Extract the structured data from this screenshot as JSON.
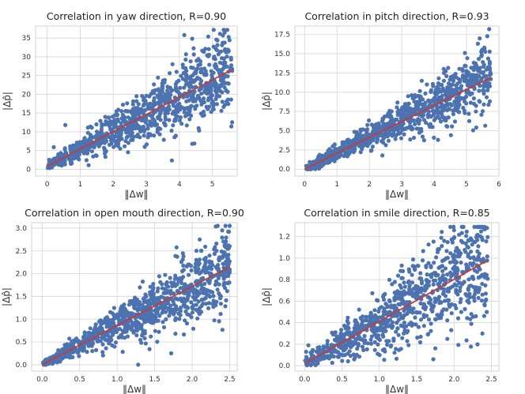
{
  "chart_data": [
    {
      "type": "scatter",
      "title": "Correlation in yaw direction, R=0.90",
      "xlabel": "‖Δw‖",
      "ylabel": "|Δp̂|",
      "xlim": [
        -0.35,
        5.75
      ],
      "ylim": [
        -1.8,
        38.2
      ],
      "xticks": [
        0,
        1,
        2,
        3,
        4,
        5
      ],
      "yticks": [
        0,
        5,
        10,
        15,
        20,
        25,
        30,
        35
      ],
      "xtick_labels": [
        "0",
        "1",
        "2",
        "3",
        "4",
        "5"
      ],
      "ytick_labels": [
        "0",
        "5",
        "10",
        "15",
        "20",
        "25",
        "30",
        "35"
      ],
      "fit_line": [
        [
          0.0,
          0.8
        ],
        [
          5.6,
          26.6
        ]
      ],
      "cloud": {
        "n": 950,
        "x_min": 0.0,
        "x_max": 5.6,
        "slope": 4.6,
        "intercept": 0.8,
        "spread_rel": 0.21,
        "y_min": 0,
        "y_max": 37.2,
        "seed": 11
      },
      "extra_points": [
        [
          0.55,
          11.8
        ],
        [
          5.45,
          37.2
        ],
        [
          4.15,
          35.8
        ],
        [
          2.95,
          6.0
        ],
        [
          0.2,
          5.9
        ]
      ]
    },
    {
      "type": "scatter",
      "title": "Correlation in pitch direction, R=0.93",
      "xlabel": "‖Δw‖",
      "ylabel": "|Δp̂|",
      "xlim": [
        -0.3,
        6.0
      ],
      "ylim": [
        -0.9,
        18.6
      ],
      "xticks": [
        0,
        1,
        2,
        3,
        4,
        5,
        6
      ],
      "yticks": [
        0.0,
        2.5,
        5.0,
        7.5,
        10.0,
        12.5,
        15.0,
        17.5
      ],
      "xtick_labels": [
        "0",
        "1",
        "2",
        "3",
        "4",
        "5",
        "6"
      ],
      "ytick_labels": [
        "0.0",
        "2.5",
        "5.0",
        "7.5",
        "10.0",
        "12.5",
        "15.0",
        "17.5"
      ],
      "fit_line": [
        [
          0.0,
          0.0
        ],
        [
          5.75,
          11.9
        ]
      ],
      "cloud": {
        "n": 950,
        "x_min": 0.0,
        "x_max": 5.75,
        "slope": 2.07,
        "intercept": 0.0,
        "spread_rel": 0.16,
        "y_min": 0,
        "y_max": 18.2,
        "seed": 23
      },
      "extra_points": [
        [
          5.7,
          18.2
        ],
        [
          5.35,
          16.3
        ],
        [
          5.55,
          15.8
        ],
        [
          4.95,
          15.1
        ]
      ]
    },
    {
      "type": "scatter",
      "title": "Correlation in open mouth direction, R=0.90",
      "xlabel": "‖Δw‖",
      "ylabel": "|Δp̂|",
      "xlim": [
        -0.14,
        2.6
      ],
      "ylim": [
        -0.14,
        3.12
      ],
      "xticks": [
        0.0,
        0.5,
        1.0,
        1.5,
        2.0,
        2.5
      ],
      "yticks": [
        0.0,
        0.5,
        1.0,
        1.5,
        2.0,
        2.5,
        3.0
      ],
      "xtick_labels": [
        "0.0",
        "0.5",
        "1.0",
        "1.5",
        "2.0",
        "2.5"
      ],
      "ytick_labels": [
        "0.0",
        "0.5",
        "1.0",
        "1.5",
        "2.0",
        "2.5",
        "3.0"
      ],
      "fit_line": [
        [
          0.0,
          0.0
        ],
        [
          2.5,
          2.15
        ]
      ],
      "cloud": {
        "n": 950,
        "x_min": 0.0,
        "x_max": 2.5,
        "slope": 0.86,
        "intercept": 0.0,
        "spread_rel": 0.2,
        "y_min": 0,
        "y_max": 3.05,
        "seed": 37
      },
      "extra_points": [
        [
          2.5,
          3.05
        ],
        [
          2.4,
          2.95
        ],
        [
          1.28,
          0.0
        ],
        [
          2.1,
          2.75
        ],
        [
          1.72,
          0.25
        ]
      ]
    },
    {
      "type": "scatter",
      "title": "Correlation in smile direction, R=0.85",
      "xlabel": "‖Δw‖",
      "ylabel": "|Δp̂|",
      "xlim": [
        -0.13,
        2.6
      ],
      "ylim": [
        -0.05,
        1.33
      ],
      "xticks": [
        0.0,
        0.5,
        1.0,
        1.5,
        2.0,
        2.5
      ],
      "yticks": [
        0.0,
        0.2,
        0.4,
        0.6,
        0.8,
        1.0,
        1.2
      ],
      "xtick_labels": [
        "0.0",
        "0.5",
        "1.0",
        "1.5",
        "2.0",
        "2.5"
      ],
      "ytick_labels": [
        "0.0",
        "0.2",
        "0.4",
        "0.6",
        "0.8",
        "1.0",
        "1.2"
      ],
      "fit_line": [
        [
          0.0,
          0.02
        ],
        [
          2.45,
          0.98
        ]
      ],
      "cloud": {
        "n": 900,
        "x_min": 0.0,
        "x_max": 2.45,
        "slope": 0.392,
        "intercept": 0.02,
        "spread_rel": 0.3,
        "y_min": 0,
        "y_max": 1.29,
        "seed": 53
      },
      "extra_points": [
        [
          0.05,
          0.19
        ],
        [
          0.02,
          0.13
        ],
        [
          1.95,
          1.29
        ],
        [
          2.0,
          1.26
        ],
        [
          2.4,
          1.28
        ]
      ]
    }
  ]
}
